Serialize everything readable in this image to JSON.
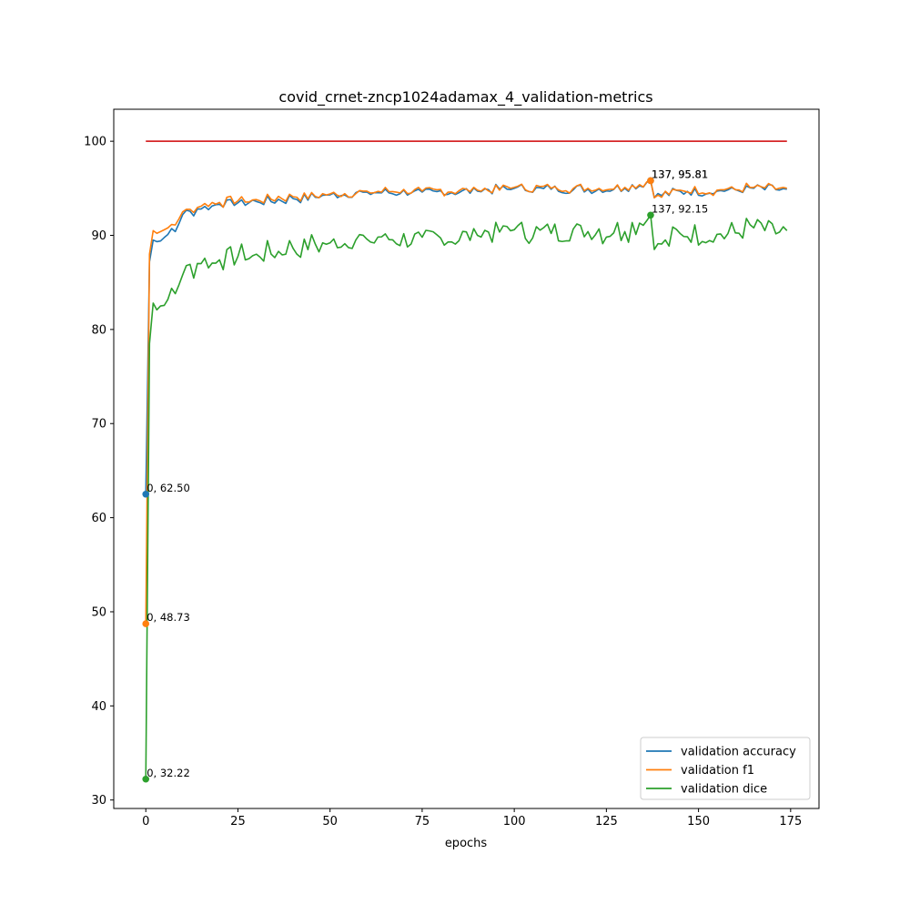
{
  "chart_data": {
    "type": "line",
    "title": "covid_crnet-zncp1024adamax_4_validation-metrics",
    "xlabel": "epochs",
    "ylabel": "",
    "xlim": [
      -8.7,
      182.7
    ],
    "ylim": [
      29.1,
      103.4
    ],
    "xticks": [
      0,
      25,
      50,
      75,
      100,
      125,
      150,
      175
    ],
    "yticks": [
      30,
      40,
      50,
      60,
      70,
      80,
      90,
      100
    ],
    "grid": false,
    "legend_position": "lower right",
    "reference_line": {
      "y": 100,
      "x_start": 0,
      "x_end": 174,
      "color": "#d62728"
    },
    "series": [
      {
        "name": "validation accuracy",
        "color": "#1f77b4",
        "anchors": [
          [
            0,
            62.5
          ],
          [
            1,
            87.2
          ],
          [
            2,
            89.5
          ],
          [
            4,
            89.4
          ],
          [
            6,
            90.1
          ],
          [
            8,
            90.4
          ],
          [
            10,
            92.2
          ],
          [
            15,
            92.8
          ],
          [
            20,
            93.3
          ],
          [
            30,
            93.6
          ],
          [
            40,
            93.9
          ],
          [
            50,
            94.3
          ],
          [
            60,
            94.6
          ],
          [
            75,
            94.6
          ],
          [
            90,
            94.7
          ],
          [
            100,
            95.0
          ],
          [
            110,
            94.9
          ],
          [
            120,
            94.9
          ],
          [
            130,
            95.0
          ],
          [
            137,
            95.81
          ],
          [
            138,
            94.0
          ],
          [
            145,
            94.7
          ],
          [
            155,
            94.7
          ],
          [
            165,
            95.0
          ],
          [
            174,
            94.9
          ]
        ],
        "noise": 0.45
      },
      {
        "name": "validation f1",
        "color": "#ff7f0e",
        "anchors": [
          [
            0,
            48.73
          ],
          [
            1,
            88.0
          ],
          [
            2,
            90.5
          ],
          [
            4,
            90.4
          ],
          [
            6,
            90.8
          ],
          [
            8,
            91.1
          ],
          [
            10,
            92.5
          ],
          [
            15,
            93.1
          ],
          [
            20,
            93.5
          ],
          [
            30,
            93.8
          ],
          [
            40,
            94.1
          ],
          [
            50,
            94.4
          ],
          [
            60,
            94.7
          ],
          [
            75,
            94.7
          ],
          [
            90,
            94.8
          ],
          [
            100,
            95.1
          ],
          [
            110,
            95.0
          ],
          [
            120,
            95.0
          ],
          [
            130,
            95.1
          ],
          [
            137,
            95.81
          ],
          [
            138,
            94.0
          ],
          [
            145,
            94.8
          ],
          [
            155,
            94.8
          ],
          [
            165,
            95.1
          ],
          [
            174,
            95.0
          ]
        ],
        "noise": 0.45
      },
      {
        "name": "validation dice",
        "color": "#2ca02c",
        "anchors": [
          [
            0,
            32.22
          ],
          [
            1,
            78.5
          ],
          [
            2,
            82.8
          ],
          [
            4,
            82.5
          ],
          [
            6,
            83.2
          ],
          [
            8,
            83.8
          ],
          [
            10,
            85.8
          ],
          [
            15,
            87.0
          ],
          [
            20,
            87.4
          ],
          [
            30,
            88.0
          ],
          [
            40,
            88.6
          ],
          [
            50,
            89.2
          ],
          [
            60,
            89.6
          ],
          [
            75,
            89.8
          ],
          [
            90,
            90.0
          ],
          [
            100,
            90.6
          ],
          [
            110,
            90.2
          ],
          [
            120,
            90.4
          ],
          [
            130,
            90.4
          ],
          [
            137,
            92.15
          ],
          [
            138,
            88.5
          ],
          [
            145,
            90.2
          ],
          [
            155,
            90.1
          ],
          [
            165,
            90.8
          ],
          [
            174,
            90.5
          ]
        ],
        "noise": 1.1
      }
    ],
    "annotations": [
      {
        "x": 0,
        "y": 62.5,
        "text": "0, 62.50",
        "color": "#1f77b4"
      },
      {
        "x": 0,
        "y": 48.73,
        "text": "0, 48.73",
        "color": "#ff7f0e"
      },
      {
        "x": 0,
        "y": 32.22,
        "text": "0, 32.22",
        "color": "#2ca02c"
      },
      {
        "x": 137,
        "y": 95.81,
        "text": "137, 95.81",
        "color": "#1f77b4"
      },
      {
        "x": 137,
        "y": 95.81,
        "text": "137, 95.81",
        "color": "#ff7f0e"
      },
      {
        "x": 137,
        "y": 92.15,
        "text": "137, 92.15",
        "color": "#2ca02c"
      }
    ]
  }
}
